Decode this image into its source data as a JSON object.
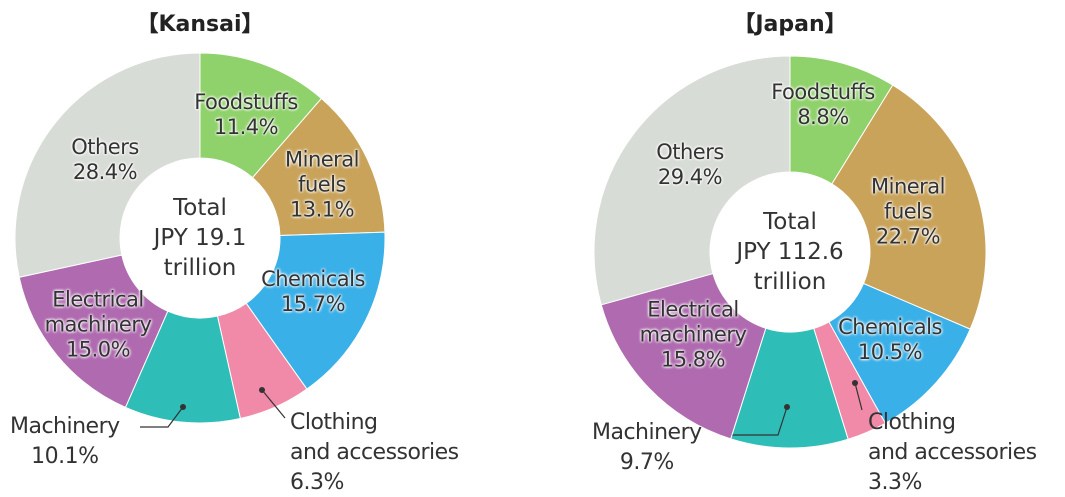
{
  "chart_data": [
    {
      "type": "pie",
      "title": "【Kansai】",
      "center_label": [
        "Total",
        "JPY 19.1",
        "trillion"
      ],
      "categories": [
        "Foodstuffs",
        "Mineral\nfuels",
        "Chemicals",
        "Clothing\nand accessories",
        "Machinery",
        "Electrical\nmachinery",
        "Others"
      ],
      "values": [
        11.4,
        13.1,
        15.7,
        6.3,
        10.1,
        15.0,
        28.4
      ],
      "value_labels": [
        "11.4%",
        "13.1%",
        "15.7%",
        "6.3%",
        "10.1%",
        "15.0%",
        "28.4%"
      ],
      "colors": [
        "#8fd16a",
        "#c9a35a",
        "#3ab0e8",
        "#f08aa8",
        "#2fbdb8",
        "#b06ab0",
        "#d8dcd6"
      ]
    },
    {
      "type": "pie",
      "title": "【Japan】",
      "center_label": [
        "Total",
        "JPY 112.6",
        "trillion"
      ],
      "categories": [
        "Foodstuffs",
        "Mineral\nfuels",
        "Chemicals",
        "Clothing\nand accessories",
        "Machinery",
        "Electrical\nmachinery",
        "Others"
      ],
      "values": [
        8.8,
        22.7,
        10.5,
        3.3,
        9.7,
        15.8,
        29.4
      ],
      "value_labels": [
        "8.8%",
        "22.7%",
        "10.5%",
        "3.3%",
        "9.7%",
        "15.8%",
        "29.4%"
      ],
      "colors": [
        "#8fd16a",
        "#c9a35a",
        "#3ab0e8",
        "#f08aa8",
        "#2fbdb8",
        "#b06ab0",
        "#d8dcd6"
      ]
    }
  ]
}
